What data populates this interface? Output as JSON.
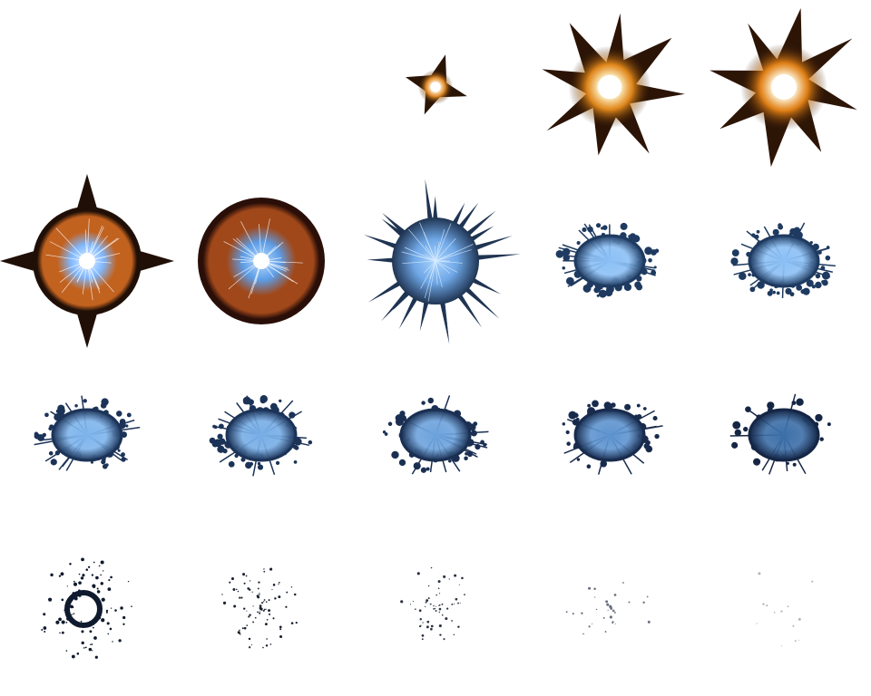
{
  "sprite_sheet": {
    "columns": 5,
    "rows": 4,
    "frame_count": 20,
    "background": "#ffffff",
    "frames": [
      {
        "kind": "empty"
      },
      {
        "kind": "empty"
      },
      {
        "kind": "star",
        "arms": 4,
        "scale": 0.4,
        "glow": "#fff6e0",
        "halo": "#ff9d2e",
        "body": "#2a1404"
      },
      {
        "kind": "star",
        "arms": 8,
        "scale": 0.95,
        "glow": "#fff6d0",
        "halo": "#ff9a1e",
        "body": "#2b1405"
      },
      {
        "kind": "star",
        "arms": 8,
        "scale": 1.0,
        "glow": "#fffbe8",
        "halo": "#ff9218",
        "body": "#2d1506"
      },
      {
        "kind": "orb",
        "ring": "#c2621f",
        "rim": "#200f06",
        "core": "#e8f4ff",
        "spark": "#7fb8ff",
        "spikes": 4
      },
      {
        "kind": "orb",
        "ring": "#a0481a",
        "rim": "#2a0e08",
        "core": "#b8dcff",
        "spark": "#5d9de6",
        "spikes": 0
      },
      {
        "kind": "spiky",
        "color": "#1f3452",
        "core": "#a9d4ff",
        "spark": "#6fa7e6"
      },
      {
        "kind": "splat",
        "color": "#1e3a60",
        "core": "#8cc0f5",
        "density": 1.0
      },
      {
        "kind": "splat",
        "color": "#1e3a60",
        "core": "#8cc0f5",
        "density": 1.0
      },
      {
        "kind": "splat",
        "color": "#1c3358",
        "core": "#7fb5ec",
        "density": 0.9
      },
      {
        "kind": "splat",
        "color": "#1c3358",
        "core": "#78aee6",
        "density": 0.85
      },
      {
        "kind": "splat",
        "color": "#1a2f52",
        "core": "#6ea3dc",
        "density": 0.75
      },
      {
        "kind": "splat",
        "color": "#182b4d",
        "core": "#5f94cf",
        "density": 0.65
      },
      {
        "kind": "splat",
        "color": "#152645",
        "core": "#3d6fa8",
        "density": 0.5
      },
      {
        "kind": "ring-debris",
        "color": "#0f1a2e",
        "density": 0.45
      },
      {
        "kind": "debris",
        "color": "#1a2230",
        "density": 0.32
      },
      {
        "kind": "debris",
        "color": "#2a3240",
        "density": 0.22
      },
      {
        "kind": "debris",
        "color": "#6a7080",
        "density": 0.12
      },
      {
        "kind": "debris",
        "color": "#b0b4bc",
        "density": 0.05
      }
    ]
  }
}
